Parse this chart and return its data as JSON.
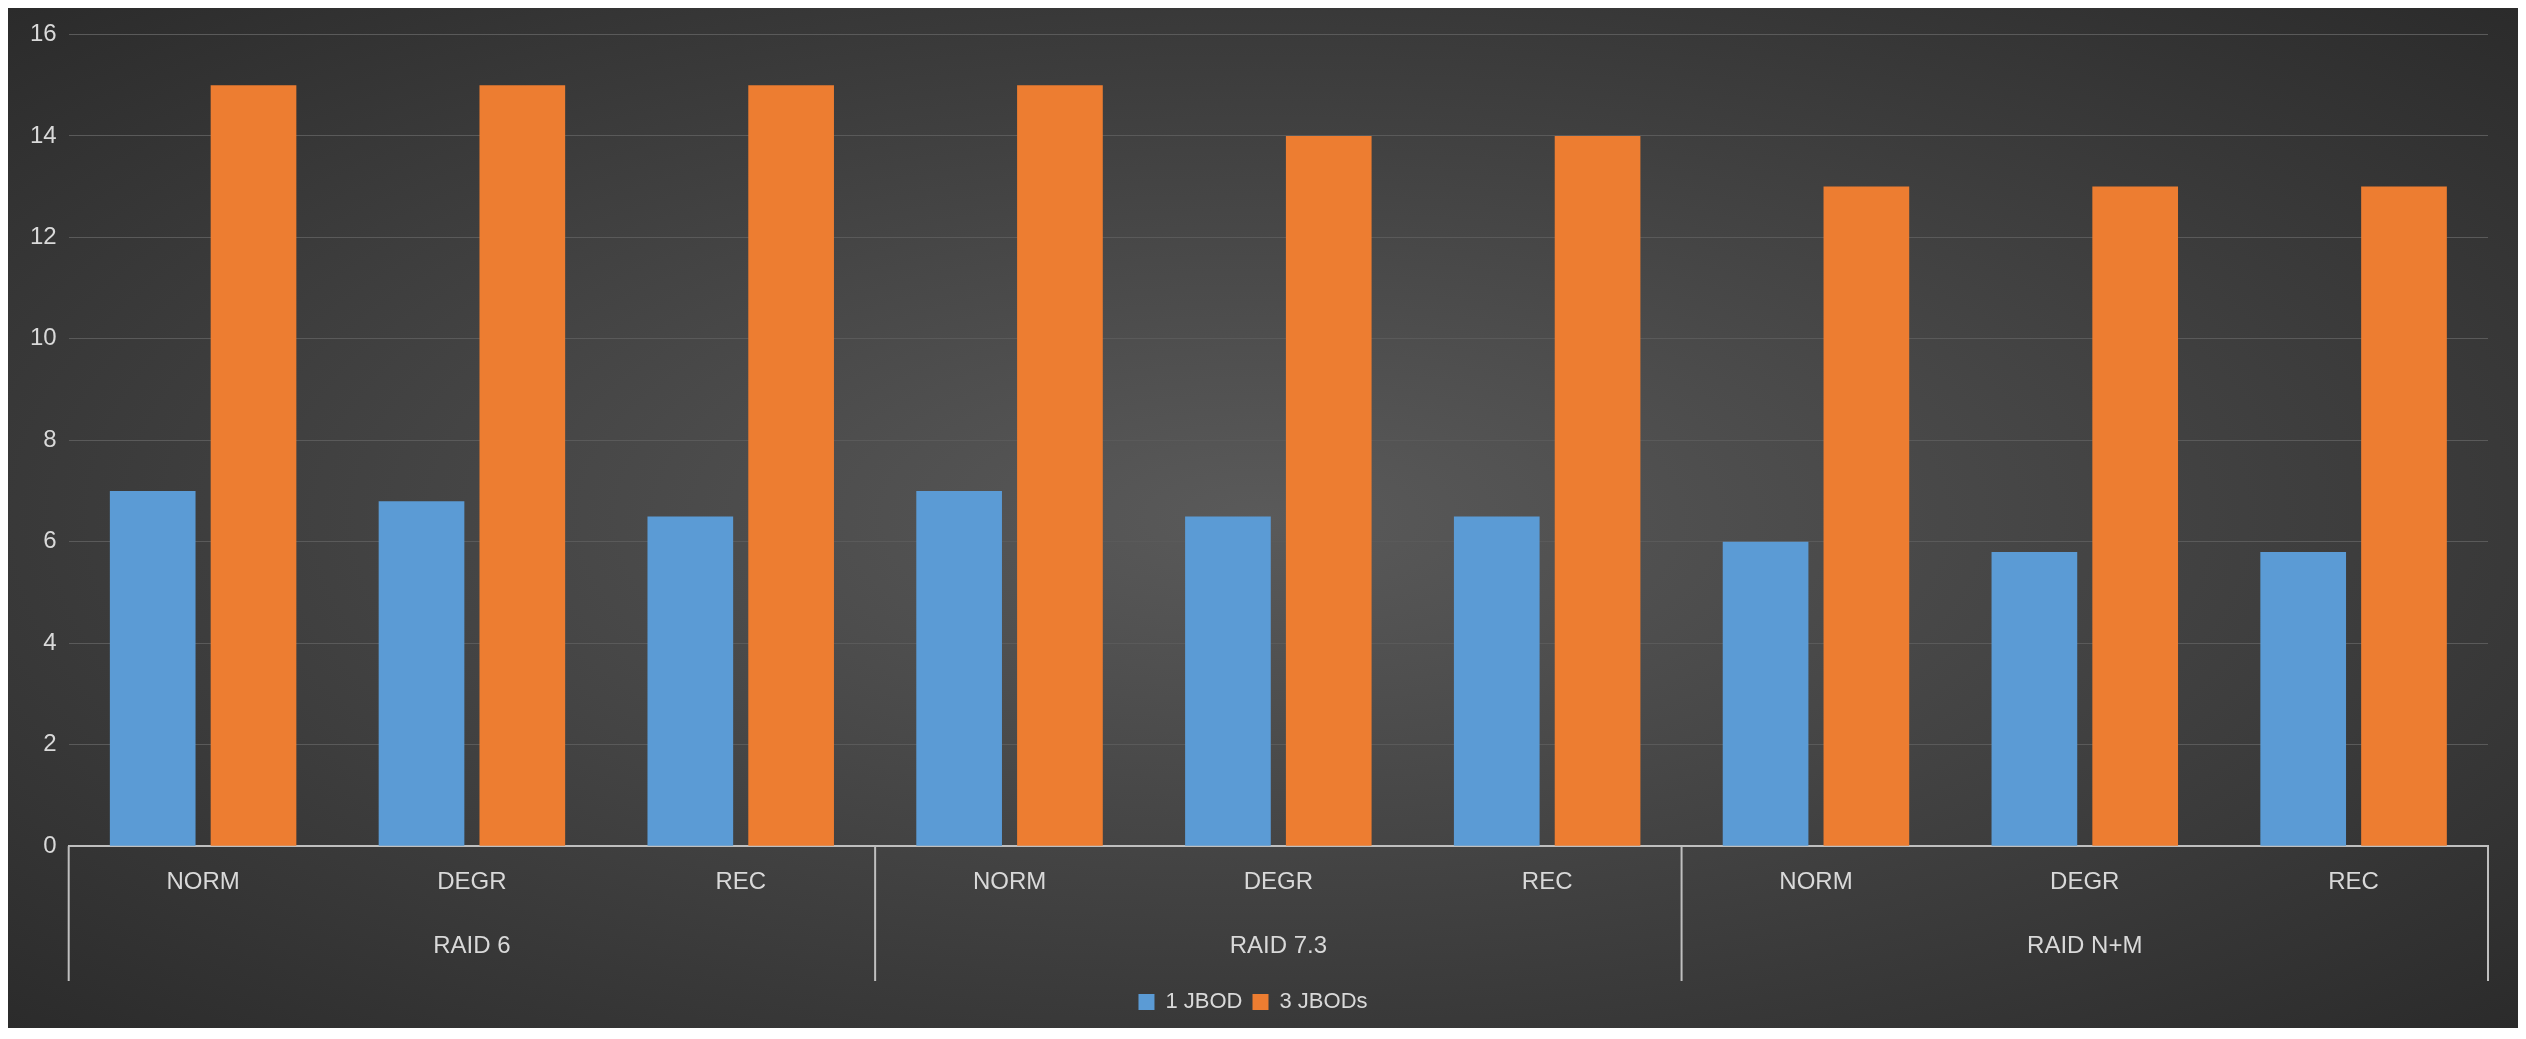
{
  "chart_data": {
    "type": "bar",
    "categories": [
      "NORM",
      "DEGR",
      "REC",
      "NORM",
      "DEGR",
      "REC",
      "NORM",
      "DEGR",
      "REC"
    ],
    "annotations": [
      "RAID 6",
      "RAID 7.3",
      "RAID N+M"
    ],
    "series": [
      {
        "name": "1 JBOD",
        "color": "#5b9bd5",
        "values": [
          7,
          6.8,
          6.5,
          7,
          6.5,
          6.5,
          6,
          5.8,
          5.8
        ]
      },
      {
        "name": "3 JBODs",
        "color": "#ed7d31",
        "values": [
          15,
          15,
          15,
          15,
          14,
          14,
          13,
          13,
          13
        ]
      }
    ],
    "ylim": [
      0,
      16
    ],
    "yticks": [
      0,
      2,
      4,
      6,
      8,
      10,
      12,
      14,
      16
    ],
    "grid": "y",
    "legend": "bottom"
  }
}
